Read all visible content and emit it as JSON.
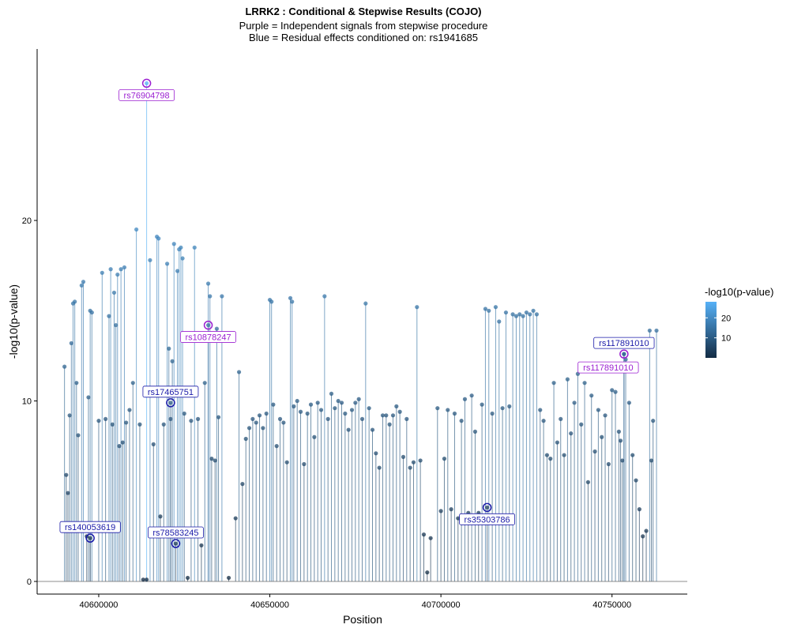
{
  "chart_data": {
    "type": "scatter",
    "title": "LRRK2 : Conditional & Stepwise Results (COJO)",
    "subtitle_lines": [
      "Purple = Independent signals from stepwise procedure",
      "Blue = Residual effects conditioned on: rs1941685"
    ],
    "xlabel": "Position",
    "ylabel": "-log10(p-value)",
    "xlim": [
      40582000,
      40772000
    ],
    "ylim": [
      -0.7,
      29.5
    ],
    "x_ticks": [
      40600000,
      40650000,
      40700000,
      40750000
    ],
    "x_tick_labels": [
      "40600000",
      "40650000",
      "40700000",
      "40750000"
    ],
    "y_ticks": [
      0,
      10,
      20
    ],
    "y_tick_labels": [
      "0",
      "10",
      "20"
    ],
    "grid": false,
    "legend": {
      "title": "-log10(p-value)",
      "placement": "right",
      "min": 0,
      "max": 28,
      "ticks": [
        10,
        20
      ],
      "tick_labels": [
        "10",
        "20"
      ],
      "color_low": "#132b43",
      "color_high": "#56b1f7"
    },
    "point_color_low": "#132b43",
    "point_color_high": "#56b1f7",
    "stepwise_color": "#9b1fd1",
    "conditional_color": "#1a1aa8",
    "series": [
      {
        "values": [
          [
            40590000,
            11.9
          ],
          [
            40590500,
            5.9
          ],
          [
            40591000,
            4.9
          ],
          [
            40591500,
            9.2
          ],
          [
            40592000,
            13.2
          ],
          [
            40592500,
            15.4
          ],
          [
            40593000,
            15.5
          ],
          [
            40593500,
            11.0
          ],
          [
            40594000,
            8.1
          ],
          [
            40595000,
            16.4
          ],
          [
            40595500,
            16.6
          ],
          [
            40596500,
            2.5
          ],
          [
            40597000,
            10.2
          ],
          [
            40597500,
            15.0
          ],
          [
            40598000,
            14.9
          ],
          [
            40600000,
            8.9
          ],
          [
            40601000,
            17.1
          ],
          [
            40602000,
            9.0
          ],
          [
            40603000,
            14.7
          ],
          [
            40603500,
            17.3
          ],
          [
            40604000,
            8.7
          ],
          [
            40604500,
            16.0
          ],
          [
            40605000,
            14.2
          ],
          [
            40605500,
            17.0
          ],
          [
            40606000,
            7.5
          ],
          [
            40606500,
            17.3
          ],
          [
            40607000,
            7.7
          ],
          [
            40607500,
            17.4
          ],
          [
            40608000,
            8.8
          ],
          [
            40609000,
            9.5
          ],
          [
            40610000,
            11.0
          ],
          [
            40611000,
            19.5
          ],
          [
            40612000,
            8.7
          ],
          [
            40613000,
            0.1
          ],
          [
            40614000,
            0.1
          ],
          [
            40615000,
            17.8
          ],
          [
            40616000,
            7.6
          ],
          [
            40617000,
            19.1
          ],
          [
            40617500,
            19.0
          ],
          [
            40618000,
            3.6
          ],
          [
            40619000,
            8.7
          ],
          [
            40620000,
            17.6
          ],
          [
            40620500,
            12.9
          ],
          [
            40621000,
            9.0
          ],
          [
            40621500,
            12.2
          ],
          [
            40622000,
            18.7
          ],
          [
            40623000,
            17.2
          ],
          [
            40623500,
            18.4
          ],
          [
            40624000,
            18.5
          ],
          [
            40624500,
            17.9
          ],
          [
            40625000,
            9.3
          ],
          [
            40626000,
            0.2
          ],
          [
            40627000,
            8.9
          ],
          [
            40628000,
            18.5
          ],
          [
            40629000,
            9.0
          ],
          [
            40630000,
            2.0
          ],
          [
            40631000,
            11.0
          ],
          [
            40632000,
            16.5
          ],
          [
            40632500,
            15.8
          ],
          [
            40633000,
            6.8
          ],
          [
            40634000,
            6.7
          ],
          [
            40634500,
            14.0
          ],
          [
            40635000,
            9.1
          ],
          [
            40636000,
            15.8
          ],
          [
            40638000,
            0.2
          ],
          [
            40640000,
            3.5
          ],
          [
            40641000,
            11.6
          ],
          [
            40642000,
            5.4
          ],
          [
            40643000,
            7.9
          ],
          [
            40644000,
            8.5
          ],
          [
            40645000,
            9.0
          ],
          [
            40646000,
            8.8
          ],
          [
            40647000,
            9.2
          ],
          [
            40648000,
            8.5
          ],
          [
            40649000,
            9.3
          ],
          [
            40650000,
            15.6
          ],
          [
            40650500,
            15.5
          ],
          [
            40651000,
            9.8
          ],
          [
            40652000,
            7.5
          ],
          [
            40653000,
            9.0
          ],
          [
            40654000,
            8.8
          ],
          [
            40655000,
            6.6
          ],
          [
            40656000,
            15.7
          ],
          [
            40656500,
            15.5
          ],
          [
            40657000,
            9.7
          ],
          [
            40658000,
            10.0
          ],
          [
            40659000,
            9.4
          ],
          [
            40660000,
            6.5
          ],
          [
            40661000,
            9.3
          ],
          [
            40662000,
            9.8
          ],
          [
            40663000,
            8.0
          ],
          [
            40664000,
            9.9
          ],
          [
            40665000,
            9.5
          ],
          [
            40666000,
            15.8
          ],
          [
            40667000,
            9.0
          ],
          [
            40668000,
            10.4
          ],
          [
            40669000,
            9.6
          ],
          [
            40670000,
            10.0
          ],
          [
            40671000,
            9.9
          ],
          [
            40672000,
            9.3
          ],
          [
            40673000,
            8.4
          ],
          [
            40674000,
            9.5
          ],
          [
            40675000,
            9.9
          ],
          [
            40676000,
            10.1
          ],
          [
            40677000,
            9.0
          ],
          [
            40678000,
            15.4
          ],
          [
            40679000,
            9.6
          ],
          [
            40680000,
            8.4
          ],
          [
            40681000,
            7.1
          ],
          [
            40682000,
            6.3
          ],
          [
            40683000,
            9.2
          ],
          [
            40684000,
            9.2
          ],
          [
            40685000,
            8.7
          ],
          [
            40686000,
            9.2
          ],
          [
            40687000,
            9.7
          ],
          [
            40688000,
            9.4
          ],
          [
            40689000,
            6.9
          ],
          [
            40690000,
            9.0
          ],
          [
            40691000,
            6.3
          ],
          [
            40692000,
            6.6
          ],
          [
            40693000,
            15.2
          ],
          [
            40694000,
            6.7
          ],
          [
            40695000,
            2.6
          ],
          [
            40696000,
            0.5
          ],
          [
            40697000,
            2.4
          ],
          [
            40699000,
            9.6
          ],
          [
            40700000,
            3.9
          ],
          [
            40701000,
            6.8
          ],
          [
            40702000,
            9.5
          ],
          [
            40703000,
            4.0
          ],
          [
            40704000,
            9.3
          ],
          [
            40705000,
            3.5
          ],
          [
            40706000,
            8.9
          ],
          [
            40707000,
            10.1
          ],
          [
            40708000,
            3.8
          ],
          [
            40709000,
            10.3
          ],
          [
            40710000,
            8.3
          ],
          [
            40711000,
            3.8
          ],
          [
            40712000,
            9.8
          ],
          [
            40713000,
            15.1
          ],
          [
            40714000,
            15.0
          ],
          [
            40715000,
            9.3
          ],
          [
            40716000,
            15.2
          ],
          [
            40717000,
            14.4
          ],
          [
            40718000,
            9.6
          ],
          [
            40719000,
            14.9
          ],
          [
            40720000,
            9.7
          ],
          [
            40721000,
            14.8
          ],
          [
            40722000,
            14.7
          ],
          [
            40723000,
            14.8
          ],
          [
            40724000,
            14.7
          ],
          [
            40725000,
            14.9
          ],
          [
            40726000,
            14.8
          ],
          [
            40727000,
            15.0
          ],
          [
            40728000,
            14.8
          ],
          [
            40729000,
            9.5
          ],
          [
            40730000,
            8.9
          ],
          [
            40731000,
            7.0
          ],
          [
            40732000,
            6.8
          ],
          [
            40733000,
            11.0
          ],
          [
            40734000,
            7.7
          ],
          [
            40735000,
            9.0
          ],
          [
            40736000,
            7.0
          ],
          [
            40737000,
            11.2
          ],
          [
            40738000,
            8.2
          ],
          [
            40739000,
            9.9
          ],
          [
            40740000,
            11.5
          ],
          [
            40741000,
            8.7
          ],
          [
            40742000,
            11.0
          ],
          [
            40743000,
            5.5
          ],
          [
            40744000,
            10.3
          ],
          [
            40745000,
            7.2
          ],
          [
            40746000,
            9.5
          ],
          [
            40747000,
            8.0
          ],
          [
            40748000,
            9.2
          ],
          [
            40749000,
            6.5
          ],
          [
            40750000,
            10.6
          ],
          [
            40751000,
            10.5
          ],
          [
            40752000,
            8.3
          ],
          [
            40752500,
            7.8
          ],
          [
            40753000,
            6.7
          ],
          [
            40754000,
            12.3
          ],
          [
            40755000,
            9.9
          ],
          [
            40756000,
            7.0
          ],
          [
            40757000,
            5.6
          ],
          [
            40758000,
            4.0
          ],
          [
            40759000,
            2.5
          ],
          [
            40760000,
            2.8
          ],
          [
            40761000,
            13.9
          ],
          [
            40761500,
            6.7
          ],
          [
            40762000,
            8.9
          ],
          [
            40763000,
            13.9
          ]
        ]
      }
    ],
    "highlighted": [
      {
        "label": "rs76904798",
        "x": 40614000,
        "y": 27.6,
        "group": "stepwise"
      },
      {
        "label": "rs10878247",
        "x": 40632000,
        "y": 14.2,
        "group": "stepwise"
      },
      {
        "label": "rs117891010",
        "x": 40753500,
        "y": 12.6,
        "group": "stepwise"
      },
      {
        "label": "rs117891010",
        "x": 40753500,
        "y": 12.6,
        "group": "conditional"
      },
      {
        "label": "rs17465751",
        "x": 40621000,
        "y": 9.9,
        "group": "conditional"
      },
      {
        "label": "rs140053619",
        "x": 40597500,
        "y": 2.4,
        "group": "conditional"
      },
      {
        "label": "rs78583245",
        "x": 40622500,
        "y": 2.1,
        "group": "conditional"
      },
      {
        "label": "rs35303786",
        "x": 40713500,
        "y": 4.1,
        "group": "conditional"
      }
    ]
  }
}
